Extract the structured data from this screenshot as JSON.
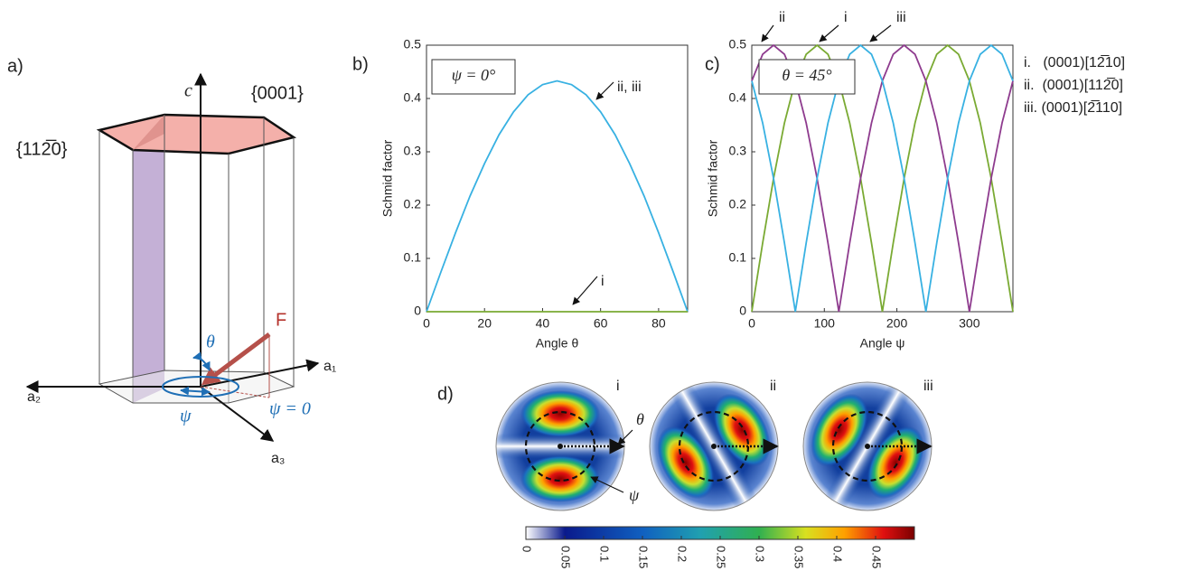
{
  "diagram": {
    "label": "a)",
    "axis_c": "c",
    "plane_basal": "{0001}",
    "plane_prism": "{112̅0}",
    "force": "F",
    "theta": "θ",
    "psi": "ψ",
    "psi_zero": "ψ = 0",
    "a1": "a₁",
    "a2": "a₂",
    "a3": "a₃"
  },
  "chart_data": [
    {
      "type": "line",
      "label": "b)",
      "box_text": "ψ = 0°",
      "ylabel": "Schmid factor",
      "xlabel": "Angle θ",
      "x": [
        0,
        5,
        10,
        15,
        20,
        25,
        30,
        35,
        40,
        45,
        50,
        55,
        60,
        65,
        70,
        75,
        80,
        85,
        90
      ],
      "xlim": [
        0,
        90
      ],
      "ylim": [
        0,
        0.5
      ],
      "xticks": [
        0,
        20,
        40,
        60,
        80
      ],
      "yticks": [
        0,
        0.1,
        0.2,
        0.3,
        0.4,
        0.5
      ],
      "series": [
        {
          "name": "ii, iii",
          "color": "#38b1e2",
          "values": [
            0,
            0.075,
            0.148,
            0.217,
            0.278,
            0.332,
            0.375,
            0.407,
            0.426,
            0.433,
            0.426,
            0.407,
            0.375,
            0.332,
            0.278,
            0.217,
            0.148,
            0.075,
            0
          ]
        },
        {
          "name": "i",
          "color": "#7aaa33",
          "values": [
            0,
            0,
            0,
            0,
            0,
            0,
            0,
            0,
            0,
            0,
            0,
            0,
            0,
            0,
            0,
            0,
            0,
            0,
            0
          ]
        }
      ]
    },
    {
      "type": "line",
      "label": "c)",
      "box_text": "θ = 45°",
      "ylabel": "Schmid factor",
      "xlabel": "Angle ψ",
      "annotations": [
        "ii",
        "i",
        "iii"
      ],
      "x": [
        0,
        15,
        30,
        45,
        60,
        75,
        90,
        105,
        120,
        135,
        150,
        165,
        180,
        195,
        210,
        225,
        240,
        255,
        270,
        285,
        300,
        315,
        330,
        345,
        360
      ],
      "xlim": [
        0,
        360
      ],
      "ylim": [
        0,
        0.5
      ],
      "xticks": [
        0,
        100,
        200,
        300
      ],
      "yticks": [
        0,
        0.1,
        0.2,
        0.3,
        0.4,
        0.5
      ],
      "series": [
        {
          "name": "i.   (0001)[12̅10]",
          "color": "#7aaa33",
          "values": [
            0,
            0.129,
            0.25,
            0.354,
            0.433,
            0.483,
            0.5,
            0.483,
            0.433,
            0.354,
            0.25,
            0.129,
            0,
            0.129,
            0.25,
            0.354,
            0.433,
            0.483,
            0.5,
            0.483,
            0.433,
            0.354,
            0.25,
            0.129,
            0
          ]
        },
        {
          "name": "ii.  (0001)[112̅0]",
          "color": "#8e3b8e",
          "values": [
            0.433,
            0.483,
            0.5,
            0.483,
            0.433,
            0.354,
            0.25,
            0.129,
            0,
            0.129,
            0.25,
            0.354,
            0.433,
            0.483,
            0.5,
            0.483,
            0.433,
            0.354,
            0.25,
            0.129,
            0,
            0.129,
            0.25,
            0.354,
            0.433
          ]
        },
        {
          "name": "iii. (0001)[2̅110]",
          "color": "#38b1e2",
          "values": [
            0.433,
            0.354,
            0.25,
            0.129,
            0,
            0.129,
            0.25,
            0.354,
            0.433,
            0.483,
            0.5,
            0.483,
            0.433,
            0.354,
            0.25,
            0.129,
            0,
            0.129,
            0.25,
            0.354,
            0.433,
            0.483,
            0.5,
            0.483,
            0.433
          ]
        }
      ]
    },
    {
      "type": "heatmap",
      "label": "d)",
      "panels": [
        "i",
        "ii",
        "iii"
      ],
      "annotations": [
        "θ",
        "ψ"
      ],
      "clim": [
        0,
        0.5
      ],
      "cticks": [
        0,
        0.05,
        0.1,
        0.15,
        0.2,
        0.25,
        0.3,
        0.35,
        0.4,
        0.45
      ]
    }
  ]
}
